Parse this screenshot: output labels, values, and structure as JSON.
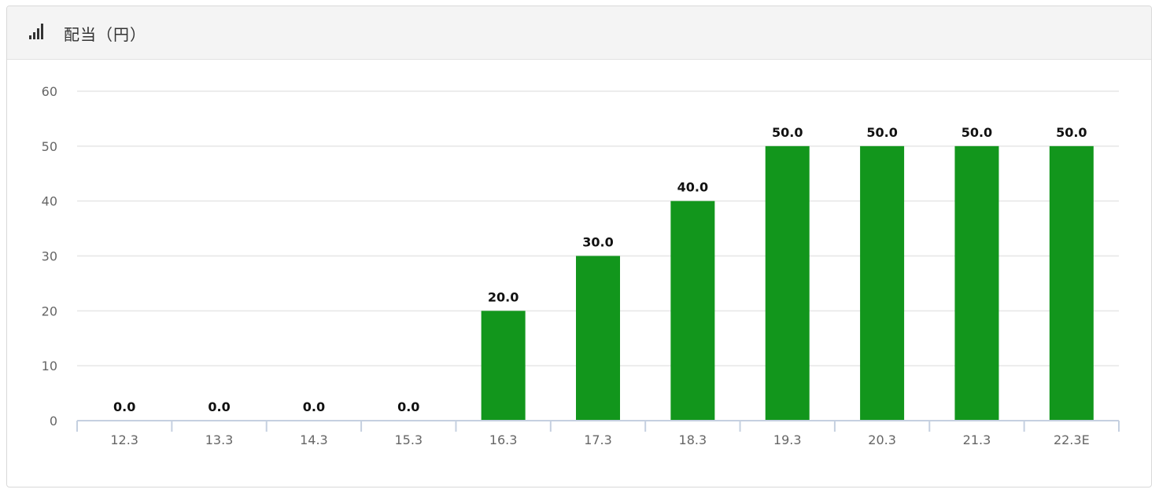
{
  "header": {
    "title": "配当（円）",
    "icon": "bar-signal-icon"
  },
  "colors": {
    "bar": "#12961c",
    "grid": "#e6e6e6",
    "axis": "#c5d0e0"
  },
  "chart_data": {
    "type": "bar",
    "title": "配当（円）",
    "categories": [
      "12.3",
      "13.3",
      "14.3",
      "15.3",
      "16.3",
      "17.3",
      "18.3",
      "19.3",
      "20.3",
      "21.3",
      "22.3E"
    ],
    "values": [
      0,
      0,
      0,
      0,
      20,
      30,
      40,
      50,
      50,
      50,
      50
    ],
    "data_labels": [
      "0.0",
      "0.0",
      "0.0",
      "0.0",
      "20.0",
      "30.0",
      "40.0",
      "50.0",
      "50.0",
      "50.0",
      "50.0"
    ],
    "yticks": [
      0,
      10,
      20,
      30,
      40,
      50,
      60
    ],
    "ylim": [
      0,
      60
    ],
    "grid": true,
    "legend": "none"
  }
}
